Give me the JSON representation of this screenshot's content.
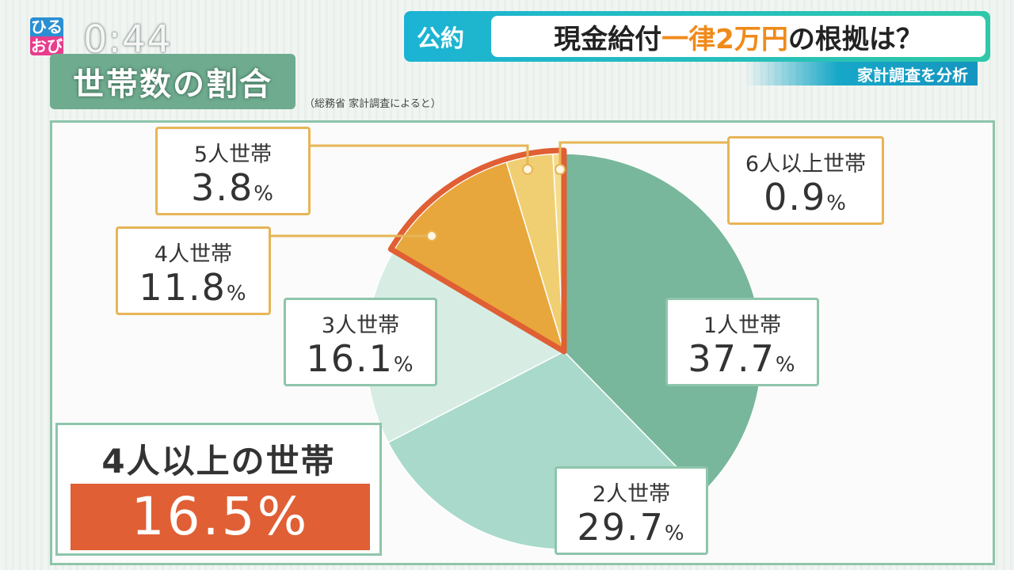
{
  "logo": {
    "line1": "ひる",
    "line2": "おび"
  },
  "clock": "0:44",
  "title": "世帯数の割合",
  "source": "（総務省 家計調査によると）",
  "topic": {
    "tag": "公約",
    "headline_pre": "現金給付",
    "headline_hl": "一律2万円",
    "headline_post": "の根拠は？",
    "sub": "家計調査を分析"
  },
  "colors": {
    "one": "#78b79b",
    "two": "#a9d9cb",
    "three": "#d7ede4",
    "four": "#e8a73c",
    "five": "#f0cf72",
    "six": "#f4dc8c",
    "highlight": "#e05f34",
    "accent": "#f08a1a"
  },
  "chart_data": {
    "type": "pie",
    "title": "世帯数の割合",
    "series": [
      {
        "name": "1人世帯",
        "value": 37.7
      },
      {
        "name": "2人世帯",
        "value": 29.7
      },
      {
        "name": "3人世帯",
        "value": 16.1
      },
      {
        "name": "4人世帯",
        "value": 11.8
      },
      {
        "name": "5人世帯",
        "value": 3.8
      },
      {
        "name": "6人以上世帯",
        "value": 0.9
      }
    ],
    "unit": "%"
  },
  "labels": {
    "one": {
      "name": "1人世帯",
      "val": "37.7"
    },
    "two": {
      "name": "2人世帯",
      "val": "29.7"
    },
    "three": {
      "name": "3人世帯",
      "val": "16.1"
    },
    "four": {
      "name": "4人世帯",
      "val": "11.8"
    },
    "five": {
      "name": "5人世帯",
      "val": "3.8"
    },
    "six": {
      "name": "6人以上世帯",
      "val": "0.9"
    },
    "pct": "%"
  },
  "summary": {
    "title": "4人以上の世帯",
    "value": "16.5%"
  }
}
